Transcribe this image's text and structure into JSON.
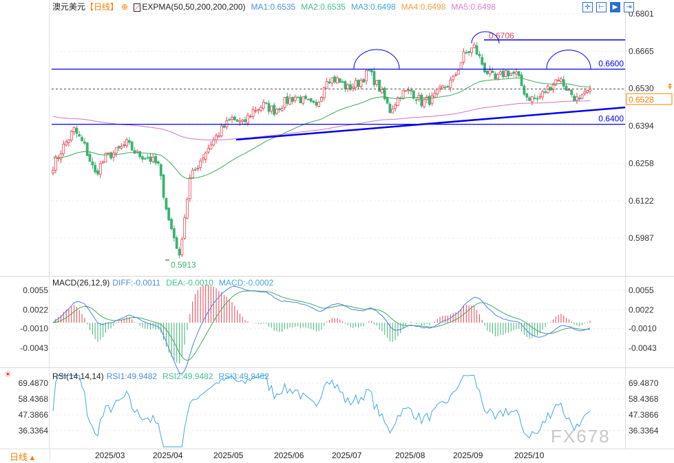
{
  "header": {
    "symbol": "澳元美元",
    "period": "【日线】",
    "indicator": "EXPMA(50,50,200,200,200)",
    "ma1": "MA1:0.6535",
    "ma2": "MA2:0.6535",
    "ma3": "MA3:0.6498",
    "ma4": "MA4:0.6498",
    "ma5": "MA5:0.6498"
  },
  "macd_header": {
    "name": "MACD(26,12,9)",
    "diff": "DIFF:-0.0011",
    "dea": "DEA:-0.0010",
    "macd": "MACD:-0.0002"
  },
  "rsi_header": {
    "name": "RSI(14,14,14)",
    "rsi1": "RSI1:49.9482",
    "rsi2": "RSI2:49.9482",
    "rsi3": "RSI3:49.9482"
  },
  "toolbar": [
    "crosshair-icon",
    "range-icon",
    "play-icon",
    "jump-end-icon"
  ],
  "bottom": {
    "period_label": "日线 ▴"
  },
  "watermark": "FX678",
  "colors": {
    "up": "#e8414f",
    "down": "#3cb371",
    "ema50": "#3aaa5c",
    "ema200": "#d070c8",
    "trend": "#0000ee",
    "current": "#f08000"
  },
  "chart_data": [
    {
      "type": "candlestick",
      "panel": "price",
      "yticks": [
        "0.6801",
        "0.6665",
        "0.6530",
        "0.6394",
        "0.6258",
        "0.6122",
        "0.5987"
      ],
      "xticks": [
        "2025/03",
        "2025/04",
        "2025/05",
        "2025/06",
        "2025/07",
        "2025/08",
        "2025/09",
        "2025/10"
      ],
      "approx_weekly_close": [
        0.625,
        0.632,
        0.638,
        0.632,
        0.622,
        0.628,
        0.63,
        0.633,
        0.629,
        0.628,
        0.625,
        0.605,
        0.593,
        0.62,
        0.627,
        0.633,
        0.638,
        0.642,
        0.64,
        0.645,
        0.647,
        0.645,
        0.648,
        0.65,
        0.648,
        0.646,
        0.657,
        0.656,
        0.653,
        0.655,
        0.659,
        0.653,
        0.645,
        0.651,
        0.652,
        0.648,
        0.649,
        0.653,
        0.656,
        0.665,
        0.668,
        0.66,
        0.656,
        0.659,
        0.658,
        0.65,
        0.649,
        0.653,
        0.657,
        0.652,
        0.648,
        0.6528
      ],
      "levels": {
        "resistance": "0.6600",
        "support": "0.6400",
        "high": "0.6706",
        "low": "0.5913",
        "current": "0.6528"
      },
      "trendline": [
        0.6344,
        0.6461
      ]
    },
    {
      "type": "macd",
      "panel": "macd",
      "yticks": [
        "0.0055",
        "0.0022",
        "-0.0010",
        "-0.0043"
      ]
    },
    {
      "type": "rsi",
      "panel": "rsi",
      "yticks": [
        "69.4870",
        "58.4368",
        "47.3866",
        "36.3364"
      ]
    }
  ]
}
